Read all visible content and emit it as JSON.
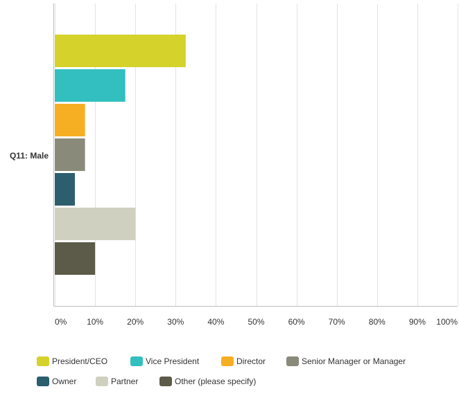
{
  "chart_data": {
    "type": "bar",
    "orientation": "horizontal",
    "categories": [
      "Q11: Male"
    ],
    "series": [
      {
        "name": "President/CEO",
        "values": [
          32.5
        ],
        "color": "#d4d22b"
      },
      {
        "name": "Vice President",
        "values": [
          17.5
        ],
        "color": "#33bfbf"
      },
      {
        "name": "Director",
        "values": [
          7.5
        ],
        "color": "#f6ae22"
      },
      {
        "name": "Senior Manager or Manager",
        "values": [
          7.5
        ],
        "color": "#8a8a7a"
      },
      {
        "name": "Owner",
        "values": [
          5
        ],
        "color": "#2c5e6e"
      },
      {
        "name": "Partner",
        "values": [
          20
        ],
        "color": "#d0d0c0"
      },
      {
        "name": "Other (please specify)",
        "values": [
          10
        ],
        "color": "#5c5a48"
      }
    ],
    "xlim": [
      0,
      100
    ],
    "xticks": [
      "0%",
      "10%",
      "20%",
      "30%",
      "40%",
      "50%",
      "60%",
      "70%",
      "80%",
      "90%",
      "100%"
    ],
    "grid": true,
    "legend_position": "bottom"
  }
}
